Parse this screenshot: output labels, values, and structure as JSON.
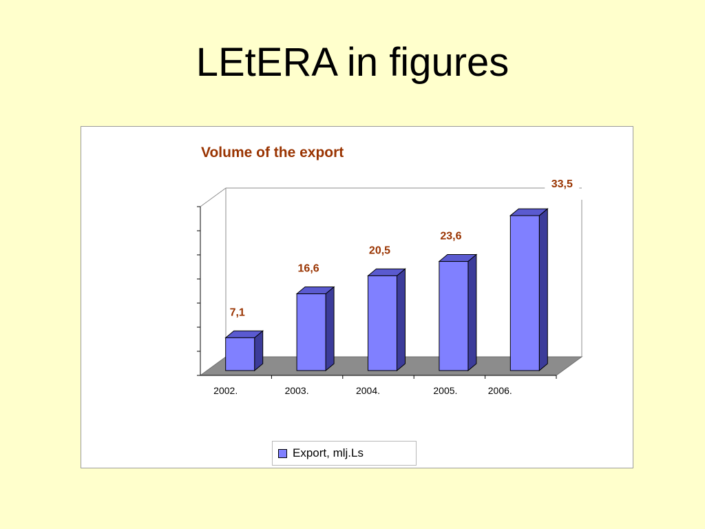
{
  "slide": {
    "title": "LEtERA in figures"
  },
  "chart_data": {
    "type": "bar",
    "title": "Volume of the export",
    "categories": [
      "2002.",
      "2003.",
      "2004.",
      "2005.",
      "2006."
    ],
    "series": [
      {
        "name": "Export, mlj.Ls",
        "values": [
          7.1,
          16.6,
          20.5,
          23.6,
          33.5
        ]
      }
    ],
    "data_labels": [
      "7,1",
      "16,6",
      "20,5",
      "23,6",
      "33,5"
    ],
    "xlabel": "",
    "ylabel": "",
    "ylim": [
      0,
      35
    ],
    "grid": false,
    "legend": "bottom",
    "colors": {
      "bar_front": "#8080ff",
      "bar_top": "#5a5ad0",
      "bar_side": "#3c3c9a",
      "floor": "#8c8c8c",
      "label": "#993300"
    }
  }
}
